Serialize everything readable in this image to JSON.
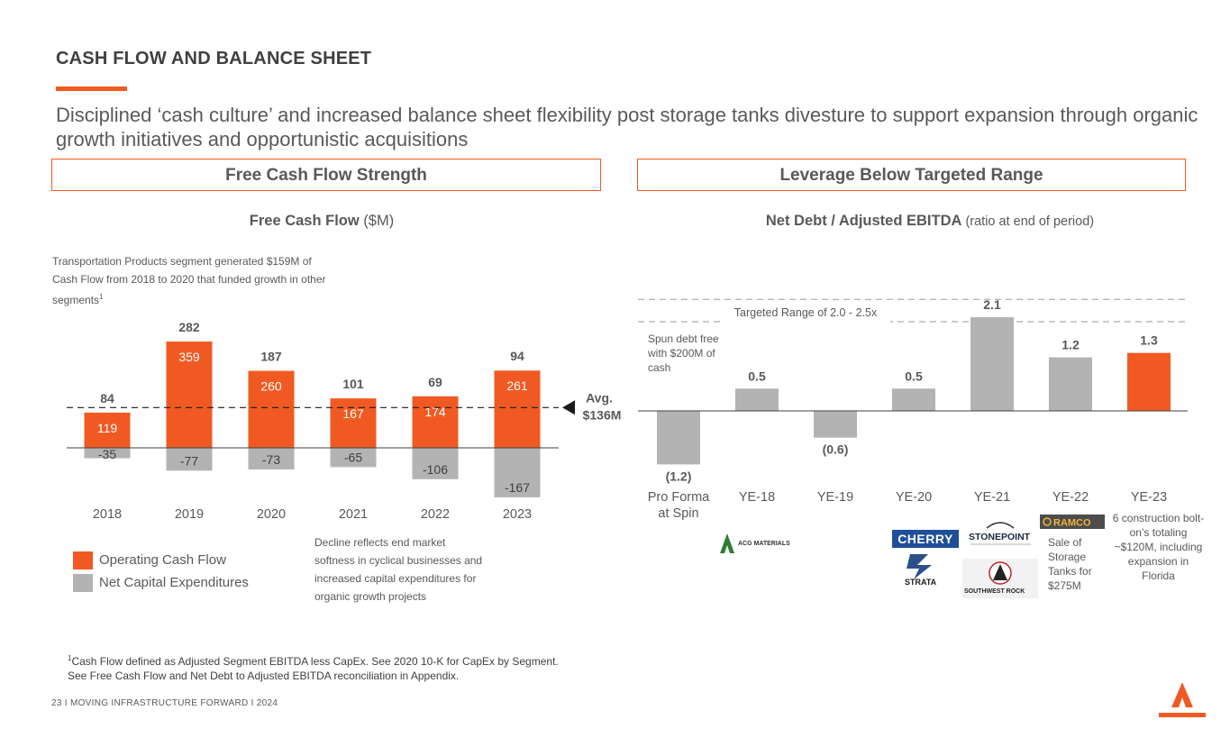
{
  "header": {
    "title": "CASH FLOW AND BALANCE SHEET",
    "subtitle": "Disciplined ‘cash culture’ and increased balance sheet flexibility post storage tanks divesture to support expansion through organic growth initiatives and opportunistic acquisitions"
  },
  "left_box": {
    "label": "Free Cash Flow Strength"
  },
  "right_box": {
    "label": "Leverage Below Targeted Range"
  },
  "fcf_chart_title": {
    "bold": "Free Cash Flow",
    "unit": " ($M)"
  },
  "lev_chart_title": {
    "bold": "Net Debt / Adjusted EBITDA",
    "unit": " (ratio at end of period)"
  },
  "notes": {
    "transport": "Transportation Products segment generated $159M of Cash Flow from 2018 to 2020 that funded growth in other segments",
    "transport_sup": "1",
    "decline": "Decline reflects end market softness in cyclical businesses and increased capital expenditures for organic growth projects",
    "spun": "Spun debt free with $200M of cash",
    "sale": "Sale of Storage Tanks for $275M",
    "construction": "6 construction bolt-on’s totaling ~$120M, including expansion in Florida"
  },
  "legend": {
    "ocf": "Operating Cash Flow",
    "ncx": "Net Capital Expenditures"
  },
  "footnote": {
    "sup": "1",
    "line1": "Cash Flow defined as Adjusted Segment EBITDA less CapEx. See 2020 10-K for CapEx by Segment.",
    "line2": "See Free Cash Flow and Net Debt to Adjusted EBITDA reconciliation in Appendix."
  },
  "footer": "23  I   MOVING INFRASTRUCTURE FORWARD   I   2024",
  "logos": {
    "acg": "ACG MATERIALS",
    "cherry": "CHERRY",
    "strata": "STRATA",
    "stonepoint": "STONEPOINT",
    "swr": "SOUTHWEST ROCK",
    "ramco": "RAMCO"
  },
  "colors": {
    "accent": "#f05a22",
    "gray_bar": "#b3b3b3",
    "text": "#595959"
  },
  "chart_data": [
    {
      "type": "bar",
      "categories": [
        "2018",
        "2019",
        "2020",
        "2021",
        "2022",
        "2023"
      ],
      "series": [
        {
          "name": "Operating Cash Flow",
          "values": [
            119,
            359,
            260,
            167,
            174,
            261
          ]
        },
        {
          "name": "Net Capital Expenditures",
          "values": [
            -35,
            -77,
            -73,
            -65,
            -106,
            -167
          ]
        }
      ],
      "totals": [
        84,
        282,
        187,
        101,
        69,
        94
      ],
      "average_line": {
        "value": 136,
        "label_line1": "Avg.",
        "label_line2": "$136M"
      },
      "ylim": [
        -170,
        370
      ]
    },
    {
      "type": "bar",
      "categories": [
        "Pro Forma at Spin",
        "YE-18",
        "YE-19",
        "YE-20",
        "YE-21",
        "YE-22",
        "YE-23"
      ],
      "values": [
        -1.2,
        0.5,
        -0.6,
        0.5,
        2.1,
        1.2,
        1.3
      ],
      "labels": [
        "(1.2)",
        "0.5",
        "(0.6)",
        "0.5",
        "2.1",
        "1.2",
        "1.3"
      ],
      "highlight_index": 6,
      "target_range": {
        "min": 2.0,
        "max": 2.5,
        "label": "Targeted Range of 2.0 - 2.5x"
      },
      "ylim": [
        -1.3,
        2.6
      ]
    }
  ]
}
